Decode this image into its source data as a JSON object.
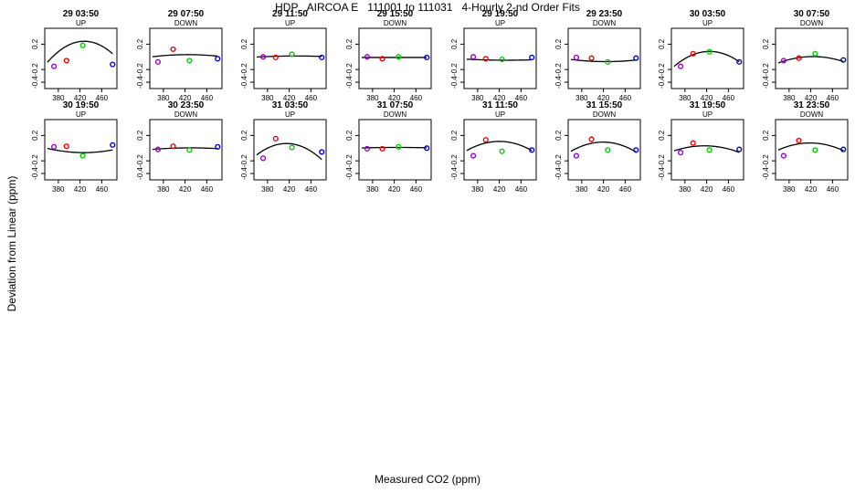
{
  "figure": {
    "title": "HDP   AIRCOA E   111001 to 111031   4-Hourly 2-nd Order Fits",
    "xlabel": "Measured CO2 (ppm)",
    "ylabel": "Deviation from Linear (ppm)"
  },
  "colors": {
    "point_colors": [
      "#9900cc",
      "#ee0000",
      "#00cc00",
      "#0000cc"
    ],
    "curve": "#000000"
  },
  "chart_data": [
    {
      "type": "scatter",
      "title": "29 03:50",
      "subtitle": "UP",
      "x": [
        372,
        395,
        425,
        480
      ],
      "y": [
        -0.15,
        -0.06,
        0.18,
        -0.12
      ],
      "curve_x": [
        360,
        480
      ],
      "curve_coef": [
        -7.2e-05,
        0.0616,
        -12.93
      ],
      "xticks": [
        380,
        420,
        460
      ],
      "yticks": [
        0.2,
        -0.2,
        -0.4
      ],
      "xlim": [
        355,
        488
      ],
      "ylim": [
        -0.5,
        0.45
      ]
    },
    {
      "type": "scatter",
      "title": "29 07:50",
      "subtitle": "DOWN",
      "x": [
        370,
        398,
        428,
        480
      ],
      "y": [
        -0.08,
        0.12,
        -0.06,
        -0.03
      ],
      "curve_x": [
        360,
        480
      ],
      "curve_coef": [
        -8e-06,
        0.0068,
        -1.41
      ],
      "xticks": [
        380,
        420,
        460
      ],
      "yticks": [
        0.2,
        -0.2,
        -0.4
      ],
      "xlim": [
        355,
        488
      ],
      "ylim": [
        -0.5,
        0.45
      ]
    },
    {
      "type": "scatter",
      "title": "29 11:50",
      "subtitle": "UP",
      "x": [
        372,
        395,
        425,
        480
      ],
      "y": [
        0.0,
        -0.01,
        0.04,
        -0.01
      ],
      "curve_x": [
        360,
        480
      ],
      "curve_coef": [
        -3e-06,
        0.0026,
        -0.55
      ],
      "xticks": [
        380,
        420,
        460
      ],
      "yticks": [
        0.2,
        -0.2,
        -0.4
      ],
      "xlim": [
        355,
        488
      ],
      "ylim": [
        -0.5,
        0.45
      ]
    },
    {
      "type": "scatter",
      "title": "29 15:50",
      "subtitle": "DOWN",
      "x": [
        370,
        398,
        428,
        480
      ],
      "y": [
        0.0,
        -0.03,
        0.0,
        -0.01
      ],
      "curve_x": [
        360,
        480
      ],
      "curve_coef": [
        0.0,
        0.0,
        -0.01
      ],
      "xticks": [
        380,
        420,
        460
      ],
      "yticks": [
        0.2,
        -0.2,
        -0.4
      ],
      "xlim": [
        355,
        488
      ],
      "ylim": [
        -0.5,
        0.45
      ]
    },
    {
      "type": "scatter",
      "title": "29 19:50",
      "subtitle": "UP",
      "x": [
        372,
        395,
        425,
        480
      ],
      "y": [
        0.0,
        -0.03,
        -0.04,
        -0.01
      ],
      "curve_x": [
        360,
        480
      ],
      "curve_coef": [
        3e-06,
        -0.0026,
        0.51
      ],
      "xticks": [
        380,
        420,
        460
      ],
      "yticks": [
        0.2,
        -0.2,
        -0.4
      ],
      "xlim": [
        355,
        488
      ],
      "ylim": [
        -0.5,
        0.45
      ]
    },
    {
      "type": "scatter",
      "title": "29 23:50",
      "subtitle": "DOWN",
      "x": [
        370,
        398,
        428,
        480
      ],
      "y": [
        -0.01,
        -0.02,
        -0.08,
        -0.02
      ],
      "curve_x": [
        360,
        480
      ],
      "curve_coef": [
        8e-06,
        -0.0068,
        1.37
      ],
      "xticks": [
        380,
        420,
        460
      ],
      "yticks": [
        0.2,
        -0.2,
        -0.4
      ],
      "xlim": [
        355,
        488
      ],
      "ylim": [
        -0.5,
        0.45
      ]
    },
    {
      "type": "scatter",
      "title": "30 03:50",
      "subtitle": "UP",
      "x": [
        372,
        395,
        425,
        480
      ],
      "y": [
        -0.15,
        0.05,
        0.08,
        -0.08
      ],
      "curve_x": [
        360,
        480
      ],
      "curve_coef": [
        -5.5e-05,
        0.0468,
        -9.87
      ],
      "xticks": [
        380,
        420,
        460
      ],
      "yticks": [
        0.2,
        -0.2,
        -0.4
      ],
      "xlim": [
        355,
        488
      ],
      "ylim": [
        -0.5,
        0.45
      ]
    },
    {
      "type": "scatter",
      "title": "30 07:50",
      "subtitle": "DOWN",
      "x": [
        370,
        398,
        428,
        480
      ],
      "y": [
        -0.06,
        -0.02,
        0.05,
        -0.05
      ],
      "curve_x": [
        360,
        480
      ],
      "curve_coef": [
        -2.5e-05,
        0.0212,
        -4.49
      ],
      "xticks": [
        380,
        420,
        460
      ],
      "yticks": [
        0.2,
        -0.2,
        -0.4
      ],
      "xlim": [
        355,
        488
      ],
      "ylim": [
        -0.5,
        0.45
      ]
    },
    {
      "type": "scatter",
      "title": "30 19:50",
      "subtitle": "UP",
      "x": [
        372,
        395,
        425,
        480
      ],
      "y": [
        0.02,
        0.03,
        -0.12,
        0.05
      ],
      "curve_x": [
        360,
        480
      ],
      "curve_coef": [
        1.5e-05,
        -0.0128,
        2.66
      ],
      "xticks": [
        380,
        420,
        460
      ],
      "yticks": [
        0.2,
        -0.2,
        -0.4
      ],
      "xlim": [
        355,
        488
      ],
      "ylim": [
        -0.5,
        0.45
      ]
    },
    {
      "type": "scatter",
      "title": "30 23:50",
      "subtitle": "DOWN",
      "x": [
        370,
        398,
        428,
        480
      ],
      "y": [
        -0.02,
        0.03,
        -0.03,
        0.02
      ],
      "curve_x": [
        360,
        480
      ],
      "curve_coef": [
        -5e-06,
        0.0043,
        -0.92
      ],
      "xticks": [
        380,
        420,
        460
      ],
      "yticks": [
        0.2,
        -0.2,
        -0.4
      ],
      "xlim": [
        355,
        488
      ],
      "ylim": [
        -0.5,
        0.45
      ]
    },
    {
      "type": "scatter",
      "title": "31 03:50",
      "subtitle": "UP",
      "x": [
        372,
        395,
        425,
        480
      ],
      "y": [
        -0.16,
        0.15,
        0.01,
        -0.06
      ],
      "curve_x": [
        360,
        480
      ],
      "curve_coef": [
        -6e-05,
        0.0498,
        -10.26
      ],
      "xticks": [
        380,
        420,
        460
      ],
      "yticks": [
        0.2,
        -0.2,
        -0.4
      ],
      "xlim": [
        355,
        488
      ],
      "ylim": [
        -0.5,
        0.45
      ]
    },
    {
      "type": "scatter",
      "title": "31 07:50",
      "subtitle": "DOWN",
      "x": [
        370,
        398,
        428,
        480
      ],
      "y": [
        -0.01,
        -0.01,
        0.02,
        0.0
      ],
      "curve_x": [
        360,
        480
      ],
      "curve_coef": [
        -2e-06,
        0.0017,
        -0.35
      ],
      "xticks": [
        380,
        420,
        460
      ],
      "yticks": [
        0.2,
        -0.2,
        -0.4
      ],
      "xlim": [
        355,
        488
      ],
      "ylim": [
        -0.5,
        0.45
      ]
    },
    {
      "type": "scatter",
      "title": "31 11:50",
      "subtitle": "UP",
      "x": [
        372,
        395,
        425,
        480
      ],
      "y": [
        -0.12,
        0.13,
        -0.05,
        -0.03
      ],
      "curve_x": [
        360,
        480
      ],
      "curve_coef": [
        -4e-05,
        0.0336,
        -6.95
      ],
      "xticks": [
        380,
        420,
        460
      ],
      "yticks": [
        0.2,
        -0.2,
        -0.4
      ],
      "xlim": [
        355,
        488
      ],
      "ylim": [
        -0.5,
        0.45
      ]
    },
    {
      "type": "scatter",
      "title": "31 15:50",
      "subtitle": "DOWN",
      "x": [
        370,
        398,
        428,
        480
      ],
      "y": [
        -0.12,
        0.14,
        -0.03,
        -0.03
      ],
      "curve_x": [
        360,
        480
      ],
      "curve_coef": [
        -4.2e-05,
        0.0352,
        -7.28
      ],
      "xticks": [
        380,
        420,
        460
      ],
      "yticks": [
        0.2,
        -0.2,
        -0.4
      ],
      "xlim": [
        355,
        488
      ],
      "ylim": [
        -0.5,
        0.45
      ]
    },
    {
      "type": "scatter",
      "title": "31 19:50",
      "subtitle": "UP",
      "x": [
        372,
        395,
        425,
        480
      ],
      "y": [
        -0.07,
        0.08,
        -0.03,
        -0.02
      ],
      "curve_x": [
        360,
        480
      ],
      "curve_coef": [
        -2.5e-05,
        0.0208,
        -4.29
      ],
      "xticks": [
        380,
        420,
        460
      ],
      "yticks": [
        0.2,
        -0.2,
        -0.4
      ],
      "xlim": [
        355,
        488
      ],
      "ylim": [
        -0.5,
        0.45
      ]
    },
    {
      "type": "scatter",
      "title": "31 23:50",
      "subtitle": "DOWN",
      "x": [
        370,
        398,
        428,
        480
      ],
      "y": [
        -0.12,
        0.12,
        -0.03,
        -0.02
      ],
      "curve_x": [
        360,
        480
      ],
      "curve_coef": [
        -3.2e-05,
        0.0268,
        -5.53
      ],
      "xticks": [
        380,
        420,
        460
      ],
      "yticks": [
        0.2,
        -0.2,
        -0.4
      ],
      "xlim": [
        355,
        488
      ],
      "ylim": [
        -0.5,
        0.45
      ]
    }
  ]
}
